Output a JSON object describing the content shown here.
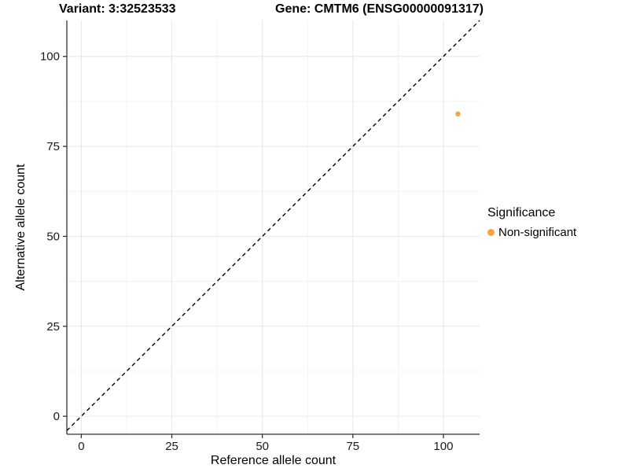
{
  "chart_data": {
    "type": "scatter",
    "title_left": "Variant: 3:32523533",
    "title_right": "Gene: CMTM6 (ENSG00000091317)",
    "xlabel": "Reference allele count",
    "ylabel": "Alternative allele count",
    "xlim": [
      -4,
      110
    ],
    "ylim": [
      -5,
      110
    ],
    "x_ticks": [
      0,
      25,
      50,
      75,
      100
    ],
    "y_ticks": [
      0,
      25,
      50,
      75,
      100
    ],
    "x_minor_ticks": [
      12.5,
      37.5,
      62.5,
      87.5
    ],
    "y_minor_ticks": [
      12.5,
      37.5,
      62.5,
      87.5
    ],
    "grid": true,
    "reference_line": {
      "kind": "identity",
      "style": "dashed",
      "color": "#000000"
    },
    "series": [
      {
        "name": "Non-significant",
        "color": "#F9A242",
        "points": [
          {
            "x": 104,
            "y": 84
          }
        ]
      }
    ],
    "legend": {
      "title": "Significance",
      "position": "right",
      "entries": [
        {
          "label": "Non-significant",
          "color": "#F9A242"
        }
      ]
    },
    "colors": {
      "grid_major": "#e6e6e6",
      "grid_minor": "#f3f3f3",
      "axis_line": "#333333",
      "tick_text": "#1a1a1a",
      "background": "#ffffff"
    }
  }
}
